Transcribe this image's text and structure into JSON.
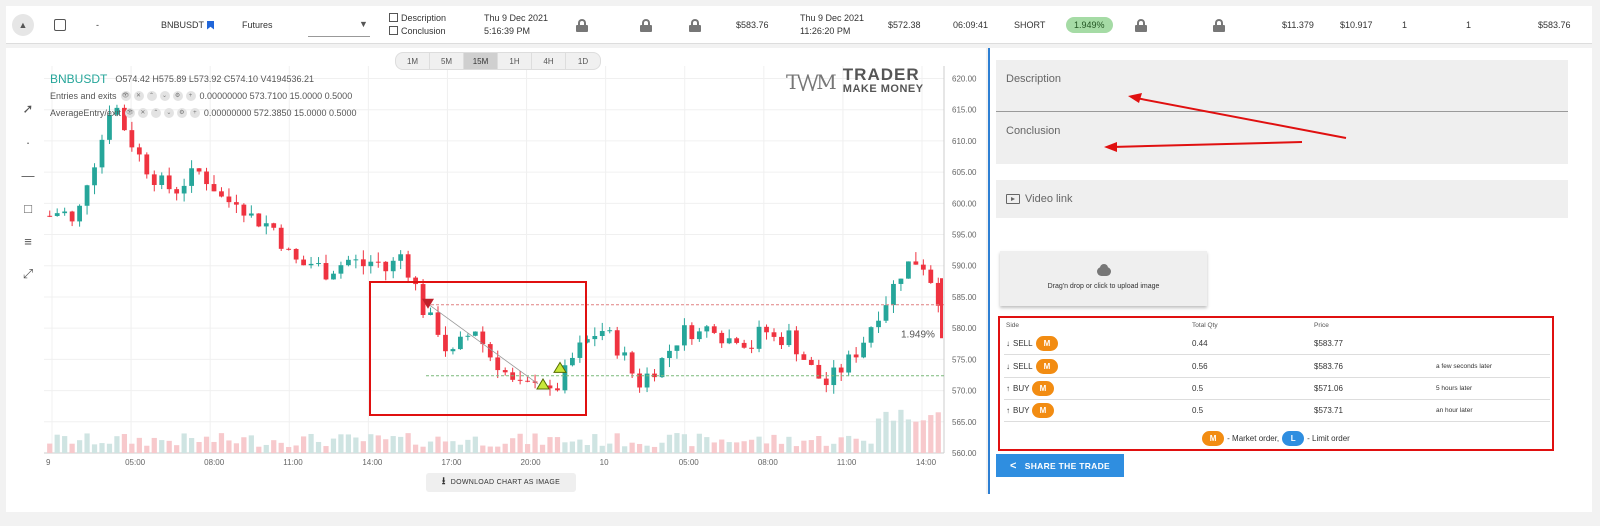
{
  "trade_row": {
    "symbol": "BNBUSDT",
    "dash": "-",
    "market": "Futures",
    "description_label": "Description",
    "conclusion_label": "Conclusion",
    "open_date": "Thu 9 Dec 2021",
    "open_time": "5:16:39 PM",
    "entry_price": "$583.76",
    "close_date": "Thu 9 Dec 2021",
    "close_time": "11:26:20 PM",
    "exit_price": "$572.38",
    "duration": "06:09:41",
    "side": "SHORT",
    "result_pct": "1.949%",
    "value_1": "$11.379",
    "value_2": "$10.917",
    "count_1": "1",
    "count_2": "1",
    "value_3": "$583.76"
  },
  "chart": {
    "timeframes": [
      "1M",
      "5M",
      "15M",
      "1H",
      "4H",
      "1D"
    ],
    "active_timeframe": "15M",
    "ticker": "BNBUSDT",
    "ohlcv": "O574.42 H575.89 L573.92 C574.10 V4194536.21",
    "series": [
      {
        "name": "Entries and exits",
        "values": "0.00000000   573.7100   15.0000   0.5000"
      },
      {
        "name": "AverageEntry/exit",
        "values": "0.00000000   572.3850   15.0000   0.5000"
      }
    ],
    "logo_top": "TRADER",
    "logo_bottom": "MAKE MONEY",
    "pct_label": "1.949%",
    "download_label": "DOWNLOAD CHART AS IMAGE",
    "up_color": "#26a69a",
    "down_color": "#ef3340"
  },
  "chart_data": {
    "type": "candlestick",
    "x_ticks": [
      "9",
      "05:00",
      "08:00",
      "11:00",
      "14:00",
      "17:00",
      "20:00",
      "10",
      "05:00",
      "08:00",
      "11:00",
      "14:00"
    ],
    "y_ticks": [
      "620.00",
      "615.00",
      "610.00",
      "605.00",
      "600.00",
      "595.00",
      "590.00",
      "585.00",
      "580.00",
      "575.00",
      "570.00",
      "565.00",
      "560.00"
    ],
    "ylim": [
      560,
      622
    ],
    "close_path": [
      598,
      599,
      596,
      604,
      609,
      617,
      612,
      608,
      605,
      603,
      602,
      604,
      605,
      603,
      600,
      601,
      598,
      597,
      596,
      592,
      590,
      590.5,
      589,
      590,
      591,
      590,
      591,
      589,
      592,
      588,
      582,
      580,
      575,
      578,
      580,
      576,
      574,
      571,
      570,
      573,
      569,
      572,
      576,
      578,
      580,
      578,
      575,
      571,
      573,
      575,
      578,
      580,
      579,
      581,
      578,
      579,
      577,
      580,
      578,
      579,
      576,
      573,
      571,
      573,
      575,
      578,
      582,
      585,
      589,
      591,
      590,
      585
    ]
  },
  "panel": {
    "description_placeholder": "Description",
    "conclusion_placeholder": "Conclusion",
    "video_placeholder": "Video link",
    "upload_text": "Drag'n drop or click to upload image",
    "orders_headers": [
      "Side",
      "Total Qty",
      "Price"
    ],
    "orders": [
      {
        "side": "SELL",
        "type": "M",
        "qty": "0.44",
        "price": "$583.77",
        "time": ""
      },
      {
        "side": "SELL",
        "type": "M",
        "qty": "0.56",
        "price": "$583.76",
        "time": "a few seconds later"
      },
      {
        "side": "BUY",
        "type": "M",
        "qty": "0.5",
        "price": "$571.06",
        "time": "5 hours later"
      },
      {
        "side": "BUY",
        "type": "M",
        "qty": "0.5",
        "price": "$573.71",
        "time": "an hour later"
      }
    ],
    "legend_m": "M",
    "legend_m_text": "- Market order,",
    "legend_l": "L",
    "legend_l_text": "- Limit order",
    "share_label": "SHARE THE TRADE"
  }
}
